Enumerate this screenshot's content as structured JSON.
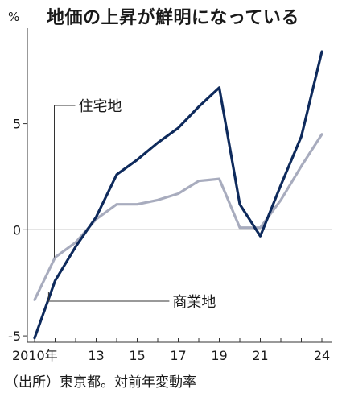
{
  "header": {
    "unit": "%",
    "title": "地価の上昇が鮮明になっている"
  },
  "footer": {
    "source": "（出所）東京都。対前年変動率"
  },
  "chart_data": {
    "type": "line",
    "title": "地価の上昇が鮮明になっている",
    "ylabel": "%",
    "xlabel": "",
    "x": [
      2010,
      2011,
      2012,
      2013,
      2014,
      2015,
      2016,
      2017,
      2018,
      2019,
      2020,
      2021,
      2022,
      2023,
      2024
    ],
    "xlim": [
      2010,
      2024
    ],
    "ylim": [
      -5.3,
      9.5
    ],
    "x_ticks": [
      {
        "value": 2010,
        "label": "2010年"
      },
      {
        "value": 2013,
        "label": "13"
      },
      {
        "value": 2015,
        "label": "15"
      },
      {
        "value": 2017,
        "label": "17"
      },
      {
        "value": 2019,
        "label": "19"
      },
      {
        "value": 2021,
        "label": "21"
      },
      {
        "value": 2024,
        "label": "24"
      }
    ],
    "y_ticks": [
      {
        "value": 5,
        "label": "5"
      },
      {
        "value": 0,
        "label": "0"
      },
      {
        "value": -5,
        "label": "-5"
      }
    ],
    "zero_line": true,
    "grid": false,
    "series": [
      {
        "name": "商業地",
        "color": "#0e2a5c",
        "values": [
          -5.1,
          -2.4,
          -0.8,
          0.6,
          2.6,
          3.3,
          4.1,
          4.8,
          5.8,
          6.7,
          1.2,
          -0.3,
          2.1,
          4.4,
          8.4
        ]
      },
      {
        "name": "住宅地",
        "color": "#a8acbe",
        "values": [
          -3.3,
          -1.3,
          -0.6,
          0.5,
          1.2,
          1.2,
          1.4,
          1.7,
          2.3,
          2.4,
          0.1,
          0.1,
          1.4,
          3.0,
          4.5
        ]
      }
    ],
    "annotations": [
      {
        "text": "住宅地",
        "series": "住宅地",
        "anchor_x": 2011
      },
      {
        "text": "商業地",
        "series": "商業地",
        "anchor_x": 2010.8
      }
    ]
  }
}
